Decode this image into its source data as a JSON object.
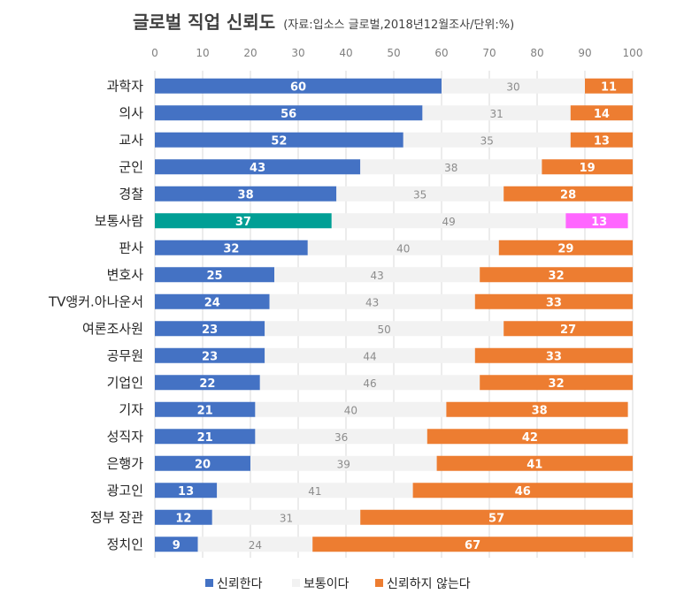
{
  "chart_data": {
    "type": "bar",
    "orientation": "horizontal",
    "stacked": true,
    "title": "글로벌 직업 신뢰도",
    "subtitle": "(자료:입소스 글로벌,2018년12월조사/단위:%)",
    "xlim": [
      0,
      100
    ],
    "xticks": [
      0,
      10,
      20,
      30,
      40,
      50,
      60,
      70,
      80,
      90,
      100
    ],
    "legend_position": "bottom",
    "categories": [
      "과학자",
      "의사",
      "교사",
      "군인",
      "경찰",
      "보통사람",
      "판사",
      "변호사",
      "TV앵커.아나운서",
      "여론조사원",
      "공무원",
      "기업인",
      "기자",
      "성직자",
      "은행가",
      "광고인",
      "정부 장관",
      "정치인"
    ],
    "series": [
      {
        "name": "신뢰한다",
        "color": "#4472c4",
        "values": [
          60,
          56,
          52,
          43,
          38,
          37,
          32,
          25,
          24,
          23,
          23,
          22,
          21,
          21,
          20,
          13,
          12,
          9
        ]
      },
      {
        "name": "보통이다",
        "color": "#f2f2f2",
        "values": [
          30,
          31,
          35,
          38,
          35,
          49,
          40,
          43,
          43,
          50,
          44,
          46,
          40,
          36,
          39,
          41,
          31,
          24
        ]
      },
      {
        "name": "신뢰하지 않는다",
        "color": "#ed7d31",
        "values": [
          11,
          14,
          13,
          19,
          28,
          13,
          29,
          32,
          33,
          27,
          33,
          32,
          38,
          42,
          41,
          46,
          57,
          67
        ]
      }
    ],
    "highlight": {
      "category": "보통사람",
      "colors": [
        "#009f95",
        "#f2f2f2",
        "#ff66ff"
      ]
    }
  }
}
